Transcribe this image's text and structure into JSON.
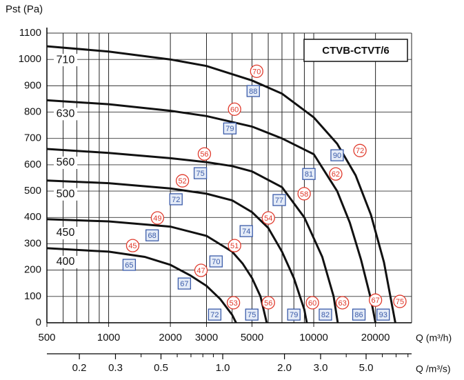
{
  "chart_data": {
    "type": "line",
    "title": "CTVB-CTVT/6",
    "y_label": "Pst (Pa)",
    "x_label": "Q (m³/h)",
    "x2_label": "Q /m³/s)",
    "xscale": "log",
    "x2scale": "log",
    "grid": true,
    "xlim": [
      500,
      30000
    ],
    "xticks": [
      500,
      1000,
      2000,
      3000,
      5000,
      10000,
      20000
    ],
    "xminor": [
      600,
      700,
      800,
      900,
      4000,
      6000,
      7000,
      8000,
      9000,
      30000
    ],
    "ylim": [
      0,
      1100
    ],
    "yticks": [
      0,
      100,
      200,
      300,
      400,
      500,
      600,
      700,
      800,
      900,
      1000,
      1100
    ],
    "x2lim": [
      0.1389,
      8.333
    ],
    "x2ticks": [
      0.2,
      0.3,
      0.5,
      {
        "value": 1,
        "label": "1.0"
      },
      {
        "value": 2,
        "label": "2.0"
      },
      {
        "value": 3,
        "label": "3.0"
      },
      {
        "value": 5,
        "label": "5.0"
      }
    ],
    "x2minor": [
      0.4,
      0.6,
      0.7,
      0.8,
      0.9,
      4,
      6,
      7,
      8
    ],
    "series": [
      {
        "name": "710",
        "color": "#111111",
        "x": [
          500,
          1000,
          2000,
          3000,
          5000,
          7000,
          10000,
          13000,
          16000,
          19000,
          22000,
          25000
        ],
        "values": [
          1050,
          1030,
          1000,
          975,
          920,
          870,
          780,
          680,
          560,
          410,
          230,
          0
        ]
      },
      {
        "name": "630",
        "color": "#111111",
        "x": [
          500,
          1000,
          2000,
          3000,
          5000,
          7000,
          10000,
          13000,
          15000,
          17000,
          19000,
          20000
        ],
        "values": [
          845,
          830,
          805,
          785,
          745,
          700,
          640,
          500,
          380,
          240,
          90,
          0
        ]
      },
      {
        "name": "560",
        "color": "#111111",
        "x": [
          500,
          1000,
          2000,
          3000,
          4000,
          5000,
          7000,
          9000,
          11000,
          12500,
          13100
        ],
        "values": [
          660,
          645,
          625,
          610,
          595,
          575,
          515,
          400,
          250,
          100,
          0
        ]
      },
      {
        "name": "500",
        "color": "#111111",
        "x": [
          500,
          1000,
          2000,
          3000,
          4000,
          5000,
          6000,
          7000,
          8000,
          9000,
          9250
        ],
        "values": [
          540,
          530,
          510,
          490,
          465,
          420,
          360,
          270,
          170,
          50,
          0
        ]
      },
      {
        "name": "450",
        "color": "#111111",
        "x": [
          500,
          1000,
          2000,
          3000,
          4000,
          4500,
          5000,
          5500,
          5900
        ],
        "values": [
          393,
          385,
          365,
          330,
          270,
          225,
          170,
          100,
          0
        ]
      },
      {
        "name": "400",
        "color": "#111111",
        "x": [
          500,
          1000,
          1500,
          2000,
          2500,
          3000,
          3500,
          4000,
          4180
        ],
        "values": [
          283,
          270,
          250,
          220,
          180,
          140,
          90,
          30,
          0
        ]
      }
    ],
    "markers": [
      {
        "shape": "circle",
        "color": "#e0392b",
        "x": [
          5270,
          4110,
          2930,
          2290,
          1730,
          1310,
          16800,
          12800,
          8980,
          6010,
          4110,
          2820,
          4060,
          6010,
          9850,
          13800,
          20000,
          26300
        ],
        "values": [
          955,
          811,
          641,
          539,
          398,
          293,
          654,
          565,
          490,
          398,
          293,
          199,
          76,
          76,
          76,
          76,
          86,
          81
        ],
        "labels": [
          70,
          60,
          56,
          52,
          49,
          45,
          72,
          62,
          58,
          54,
          51,
          47,
          53,
          56,
          60,
          63,
          67,
          75
        ]
      },
      {
        "shape": "square",
        "color": "#3a5ba9",
        "x": [
          5070,
          3900,
          2800,
          2130,
          1630,
          1260,
          13000,
          9470,
          6790,
          4690,
          3340,
          2340,
          3290,
          4990,
          8000,
          11400,
          16600,
          21800
        ],
        "values": [
          880,
          738,
          568,
          469,
          332,
          220,
          636,
          565,
          466,
          348,
          233,
          149,
          31,
          31,
          31,
          31,
          31,
          31
        ],
        "labels": [
          88,
          79,
          75,
          72,
          68,
          65,
          90,
          81,
          77,
          74,
          70,
          67,
          72,
          75,
          79,
          82,
          86,
          93
        ]
      }
    ]
  }
}
